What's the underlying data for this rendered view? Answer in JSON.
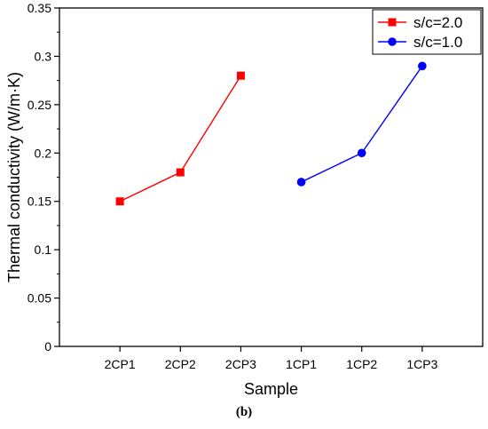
{
  "chart_data": {
    "type": "line",
    "categories": [
      "2CP1",
      "2CP2",
      "2CP3",
      "1CP1",
      "1CP2",
      "1CP3"
    ],
    "series": [
      {
        "name": "s/c=2.0",
        "color": "#ff0000",
        "marker": "square",
        "values": [
          0.15,
          0.18,
          0.28,
          null,
          null,
          null
        ]
      },
      {
        "name": "s/c=1.0",
        "color": "#0000ff",
        "marker": "circle",
        "values": [
          null,
          null,
          null,
          0.17,
          0.2,
          0.29
        ]
      }
    ],
    "xlabel": "Sample",
    "ylabel": "Thermal conductivity (W/m·K)",
    "ylim": [
      0,
      0.35
    ],
    "yticks": [
      "0",
      "0.05",
      "0.1",
      "0.15",
      "0.2",
      "0.25",
      "0.3",
      "0.35"
    ],
    "grid": false,
    "legend_position": "top-right"
  },
  "caption": "(b)"
}
